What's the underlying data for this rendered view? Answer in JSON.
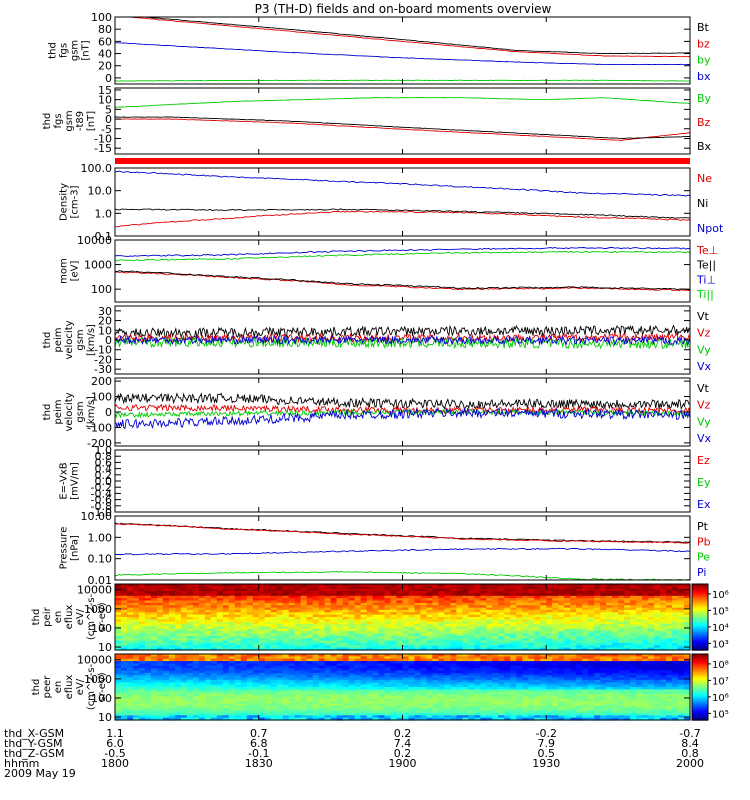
{
  "title": "P3 (TH-D) fields and on-board moments overview",
  "colors": {
    "black": "#000000",
    "red": "#e00000",
    "green": "#00cc00",
    "blue": "#0000d0",
    "bar_red": "#ff0000"
  },
  "chart_data": [
    {
      "type": "line",
      "ylabel": [
        "thd",
        "fgs",
        "gsm",
        "[nT]"
      ],
      "ylim": [
        -10,
        100
      ],
      "yticks": [
        0,
        20,
        40,
        60,
        80,
        100
      ],
      "series": [
        {
          "name": "Bt",
          "color": "black",
          "x": [
            0,
            0.3,
            0.5,
            0.7,
            0.85,
            1
          ],
          "y": [
            104,
            80,
            63,
            45,
            40,
            41
          ]
        },
        {
          "name": "bz",
          "color": "red",
          "x": [
            0,
            0.3,
            0.5,
            0.7,
            0.85,
            1
          ],
          "y": [
            102,
            77,
            60,
            43,
            36,
            35
          ]
        },
        {
          "name": "by",
          "color": "green",
          "x": [
            0,
            0.3,
            0.5,
            0.7,
            0.85,
            1
          ],
          "y": [
            -5,
            -4,
            -4,
            -4,
            -4,
            -5
          ]
        },
        {
          "name": "bx",
          "color": "blue",
          "x": [
            0,
            0.3,
            0.5,
            0.7,
            0.85,
            1
          ],
          "y": [
            58,
            42,
            33,
            26,
            22,
            22
          ]
        }
      ]
    },
    {
      "type": "line",
      "ylabel": [
        "thd",
        "fgs",
        "gsm",
        "-t89",
        "[nT]"
      ],
      "ylim": [
        -18,
        16
      ],
      "yticks": [
        -15,
        -10,
        -5,
        0,
        5,
        10,
        15
      ],
      "series": [
        {
          "name": "By",
          "color": "green",
          "x": [
            0,
            0.2,
            0.45,
            0.6,
            0.75,
            0.85,
            1
          ],
          "y": [
            6,
            9,
            11,
            11,
            10,
            11,
            8
          ]
        },
        {
          "name": "Bz",
          "color": "red",
          "x": [
            0,
            0.1,
            0.3,
            0.55,
            0.75,
            0.88,
            1
          ],
          "y": [
            0,
            0,
            -2,
            -6,
            -9,
            -11,
            -7
          ]
        },
        {
          "name": "Bx",
          "color": "black",
          "x": [
            0,
            0.1,
            0.3,
            0.55,
            0.75,
            0.88,
            1
          ],
          "y": [
            1,
            1,
            -1,
            -5,
            -8,
            -10,
            -9
          ]
        }
      ]
    },
    {
      "type": "line",
      "log": true,
      "ylabel": [
        "Density",
        "[cm-3]"
      ],
      "ylim": [
        0.1,
        100
      ],
      "yticks": [
        0.1,
        1.0,
        10.0,
        100.0
      ],
      "yticklabels": [
        "0.1",
        "1.0",
        "10.0",
        "100.0"
      ],
      "series": [
        {
          "name": "Ne",
          "color": "red",
          "x": [
            0,
            0.2,
            0.4,
            0.6,
            0.8,
            1
          ],
          "y": [
            0.25,
            0.6,
            1.2,
            1.1,
            0.7,
            0.5
          ]
        },
        {
          "name": "Ni",
          "color": "black",
          "x": [
            0,
            0.2,
            0.4,
            0.6,
            0.8,
            1
          ],
          "y": [
            1.5,
            1.4,
            1.5,
            1.2,
            0.9,
            0.6
          ]
        },
        {
          "name": "Npot",
          "color": "blue",
          "x": [
            0,
            0.2,
            0.4,
            0.6,
            0.8,
            1
          ],
          "y": [
            70,
            40,
            25,
            15,
            8,
            6
          ]
        }
      ]
    },
    {
      "type": "line",
      "log": true,
      "ylabel": [
        "mom",
        "[eV]"
      ],
      "ylim": [
        30,
        10000
      ],
      "yticks": [
        100,
        1000,
        10000
      ],
      "yticklabels": [
        "100",
        "1000",
        "10000"
      ],
      "series": [
        {
          "name": "Te⊥",
          "color": "red",
          "x": [
            0,
            0.2,
            0.4,
            0.6,
            0.8,
            1
          ],
          "y": [
            500,
            300,
            150,
            100,
            110,
            90
          ]
        },
        {
          "name": "Te||",
          "color": "black",
          "x": [
            0,
            0.2,
            0.4,
            0.6,
            0.8,
            1
          ],
          "y": [
            550,
            320,
            170,
            110,
            120,
            100
          ]
        },
        {
          "name": "Ti⊥",
          "color": "blue",
          "x": [
            0,
            0.2,
            0.4,
            0.6,
            0.8,
            1
          ],
          "y": [
            2200,
            2500,
            3500,
            4200,
            4800,
            4500
          ]
        },
        {
          "name": "Ti||",
          "color": "green",
          "x": [
            0,
            0.2,
            0.4,
            0.6,
            0.8,
            1
          ],
          "y": [
            1500,
            1700,
            2400,
            3000,
            3300,
            3200
          ]
        }
      ]
    },
    {
      "type": "line",
      "ylabel": [
        "thd",
        "peim",
        "velocity",
        "gsm",
        "[km/s]"
      ],
      "ylim": [
        -35,
        35
      ],
      "yticks": [
        -30,
        -20,
        -10,
        0,
        10,
        20,
        30
      ],
      "series": [
        {
          "name": "Vt",
          "color": "black",
          "x": [
            0,
            0.5,
            1
          ],
          "y": [
            7,
            9,
            10
          ],
          "noise": 5
        },
        {
          "name": "Vz",
          "color": "red",
          "x": [
            0,
            0.5,
            1
          ],
          "y": [
            2,
            2,
            3
          ],
          "noise": 4
        },
        {
          "name": "Vy",
          "color": "green",
          "x": [
            0,
            0.5,
            1
          ],
          "y": [
            -2,
            -3,
            -4
          ],
          "noise": 5
        },
        {
          "name": "Vx",
          "color": "blue",
          "x": [
            0,
            0.5,
            1
          ],
          "y": [
            0,
            0,
            -1
          ],
          "noise": 4
        }
      ]
    },
    {
      "type": "line",
      "ylabel": [
        "thd",
        "peim",
        "velocity",
        "gsm",
        "[km/s]"
      ],
      "ylim": [
        -220,
        220
      ],
      "yticks": [
        -200,
        -100,
        0,
        100,
        200
      ],
      "series": [
        {
          "name": "Vt",
          "color": "black",
          "x": [
            0,
            0.2,
            0.4,
            0.6,
            0.8,
            1
          ],
          "y": [
            90,
            90,
            60,
            50,
            55,
            50
          ],
          "noise": 30
        },
        {
          "name": "Vz",
          "color": "red",
          "x": [
            0,
            0.2,
            0.4,
            0.6,
            0.8,
            1
          ],
          "y": [
            30,
            25,
            15,
            10,
            15,
            10
          ],
          "noise": 20
        },
        {
          "name": "Vy",
          "color": "green",
          "x": [
            0,
            0.2,
            0.4,
            0.6,
            0.8,
            1
          ],
          "y": [
            -20,
            -10,
            -5,
            0,
            -5,
            -10
          ],
          "noise": 15
        },
        {
          "name": "Vx",
          "color": "blue",
          "x": [
            0,
            0.2,
            0.4,
            0.6,
            0.8,
            1
          ],
          "y": [
            -80,
            -60,
            -20,
            -5,
            -10,
            -20
          ],
          "noise": 30
        }
      ]
    },
    {
      "type": "line",
      "ylabel": [
        "E=-VxB",
        "[mV/m]"
      ],
      "ylim": [
        -1.0,
        1.0
      ],
      "yticks": [
        -1.0,
        -0.8,
        -0.6,
        -0.4,
        -0.2,
        0.0,
        0.2,
        0.4,
        0.6,
        0.8,
        1.0
      ],
      "yticklabels": [
        "-1.0",
        "-0.8",
        "-0.6",
        "-0.4",
        "-0.2",
        "0.0",
        "0.2",
        "0.4",
        "0.6",
        "0.8",
        "1.0"
      ],
      "series": [
        {
          "name": "Ez",
          "color": "red",
          "x": [],
          "y": []
        },
        {
          "name": "Ey",
          "color": "green",
          "x": [],
          "y": []
        },
        {
          "name": "Ex",
          "color": "blue",
          "x": [],
          "y": []
        }
      ]
    },
    {
      "type": "line",
      "log": true,
      "ylabel": [
        "Pressure",
        "[nPa]"
      ],
      "ylim": [
        0.01,
        10
      ],
      "yticks": [
        0.01,
        0.1,
        1.0,
        10.0
      ],
      "yticklabels": [
        "0.01",
        "0.10",
        "1.00",
        "10.00"
      ],
      "series": [
        {
          "name": "Pt",
          "color": "black",
          "x": [
            0,
            0.2,
            0.4,
            0.6,
            0.8,
            1
          ],
          "y": [
            4.5,
            2.5,
            1.5,
            0.9,
            0.7,
            0.6
          ]
        },
        {
          "name": "Pb",
          "color": "red",
          "x": [
            0,
            0.2,
            0.4,
            0.6,
            0.8,
            1
          ],
          "y": [
            4.3,
            2.4,
            1.4,
            0.85,
            0.65,
            0.55
          ]
        },
        {
          "name": "Pe",
          "color": "green",
          "x": [
            0,
            0.2,
            0.4,
            0.6,
            0.8,
            1
          ],
          "y": [
            0.017,
            0.022,
            0.024,
            0.02,
            0.011,
            0.01
          ]
        },
        {
          "name": "Pi",
          "color": "blue",
          "x": [
            0,
            0.2,
            0.4,
            0.6,
            0.8,
            1
          ],
          "y": [
            0.16,
            0.17,
            0.22,
            0.28,
            0.29,
            0.22
          ]
        }
      ]
    },
    {
      "type": "heatmap",
      "ylabel": [
        "thd",
        "peir",
        "en",
        "eflux",
        "eV/",
        "(cm^2-s-",
        "sr-eV)"
      ],
      "ylim": [
        7,
        20000
      ],
      "yticks": [
        10,
        100,
        1000,
        10000
      ],
      "yticklabels": [
        "10",
        "100",
        "1000",
        "10000"
      ],
      "colorbar": {
        "min_exp": 2.6,
        "max_exp": 6.6,
        "labels": [
          "10³",
          "10⁴",
          "10⁵",
          "10⁶"
        ],
        "label_exps": [
          3,
          4,
          5,
          6
        ]
      }
    },
    {
      "type": "heatmap",
      "ylabel": [
        "thd",
        "peer",
        "en",
        "eflux",
        "eV/",
        "(cm^2-s-",
        "sr-eV)"
      ],
      "ylim": [
        7,
        20000
      ],
      "yticks": [
        10,
        100,
        1000,
        10000
      ],
      "yticklabels": [
        "10",
        "100",
        "1000",
        "10000"
      ],
      "colorbar": {
        "min_exp": 4.6,
        "max_exp": 8.6,
        "labels": [
          "10⁵",
          "10⁶",
          "10⁷",
          "10⁸"
        ],
        "label_exps": [
          5,
          6,
          7,
          8
        ]
      }
    }
  ],
  "xaxis": {
    "rows": [
      {
        "label": "thd_X-GSM",
        "values": [
          "1.1",
          "0.7",
          "0.2",
          "-0.2",
          "-0.7"
        ]
      },
      {
        "label": "thd_Y-GSM",
        "values": [
          "6.0",
          "6.8",
          "7.4",
          "7.9",
          "8.4"
        ]
      },
      {
        "label": "thd_Z-GSM",
        "values": [
          "-0.5",
          "-0.1",
          "0.2",
          "0.5",
          "0.8"
        ]
      },
      {
        "label": "hhmm",
        "values": [
          "1800",
          "1830",
          "1900",
          "1930",
          "2000"
        ]
      }
    ],
    "date": "2009 May 19"
  }
}
